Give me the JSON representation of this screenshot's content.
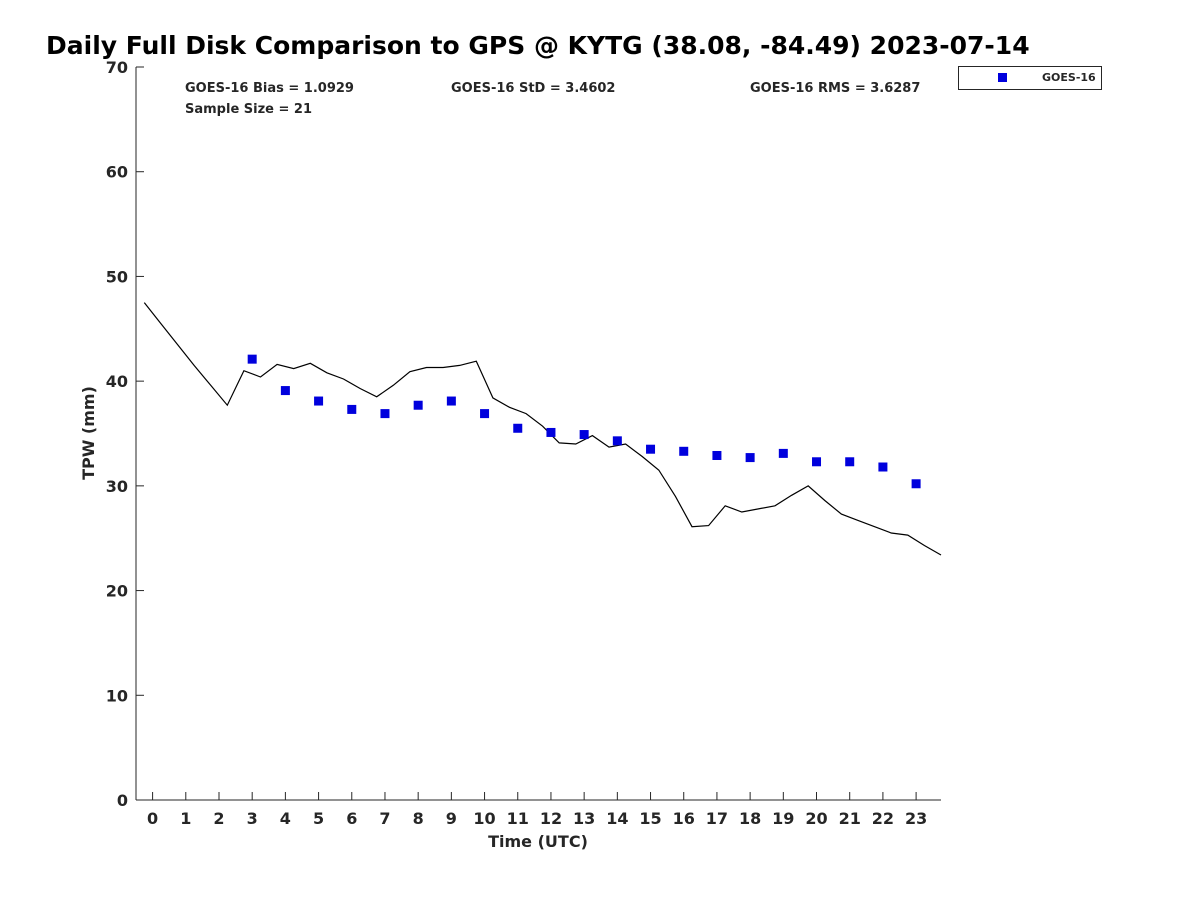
{
  "chart_data": {
    "type": "scatter",
    "title": "Daily Full Disk Comparison to GPS @ KYTG (38.08, -84.49) 2023-07-14",
    "xlabel": "Time (UTC)",
    "ylabel": "TPW (mm)",
    "xlim": [
      -0.5,
      23.75
    ],
    "ylim": [
      0,
      70
    ],
    "x_ticks": [
      0,
      1,
      2,
      3,
      4,
      5,
      6,
      7,
      8,
      9,
      10,
      11,
      12,
      13,
      14,
      15,
      16,
      17,
      18,
      19,
      20,
      21,
      22,
      23
    ],
    "y_ticks": [
      0,
      10,
      20,
      30,
      40,
      50,
      60,
      70
    ],
    "grid": false,
    "legend_position": "top-right, outside plot",
    "annotations": {
      "bias": "GOES-16 Bias = 1.0929",
      "std": "GOES-16 StD = 3.4602",
      "rms": "GOES-16 RMS = 3.6287",
      "sample": "Sample Size = 21"
    },
    "series": [
      {
        "name": "GOES-16",
        "kind": "scatter",
        "marker": "square",
        "color": "#0000dd",
        "x": [
          3,
          4,
          5,
          6,
          7,
          8,
          9,
          10,
          11,
          12,
          13,
          14,
          15,
          16,
          17,
          18,
          19,
          20,
          21,
          22,
          23
        ],
        "y": [
          42.1,
          39.1,
          38.1,
          37.3,
          36.9,
          37.7,
          38.1,
          36.9,
          35.5,
          35.1,
          34.9,
          34.3,
          33.5,
          33.3,
          32.9,
          32.7,
          33.1,
          32.3,
          32.3,
          31.8,
          30.2
        ]
      },
      {
        "kind": "line",
        "color": "#000000",
        "x": [
          -0.25,
          0.25,
          0.75,
          1.25,
          1.75,
          2.25,
          2.75,
          3.25,
          3.75,
          4.25,
          4.75,
          5.25,
          5.75,
          6.25,
          6.75,
          7.25,
          7.75,
          8.25,
          8.75,
          9.25,
          9.75,
          10.25,
          10.75,
          11.25,
          11.75,
          12.25,
          12.75,
          13.25,
          13.75,
          14.25,
          14.75,
          15.25,
          15.75,
          16.25,
          16.75,
          17.25,
          17.75,
          18.25,
          18.75,
          19.25,
          19.75,
          20.25,
          20.75,
          21.25,
          21.75,
          22.25,
          22.75,
          23.25,
          23.75
        ],
        "y": [
          47.5,
          45.5,
          43.5,
          41.5,
          39.6,
          37.7,
          41.0,
          40.4,
          41.6,
          41.2,
          41.7,
          40.8,
          40.2,
          39.3,
          38.5,
          39.6,
          40.9,
          41.3,
          41.3,
          41.5,
          41.9,
          38.4,
          37.5,
          36.9,
          35.7,
          34.1,
          34.0,
          34.8,
          33.7,
          34.0,
          32.8,
          31.5,
          29.0,
          26.1,
          26.2,
          28.1,
          27.5,
          27.8,
          28.1,
          29.1,
          30.0,
          28.6,
          27.3,
          26.7,
          26.1,
          25.5,
          25.3,
          24.3,
          23.4
        ]
      }
    ]
  }
}
